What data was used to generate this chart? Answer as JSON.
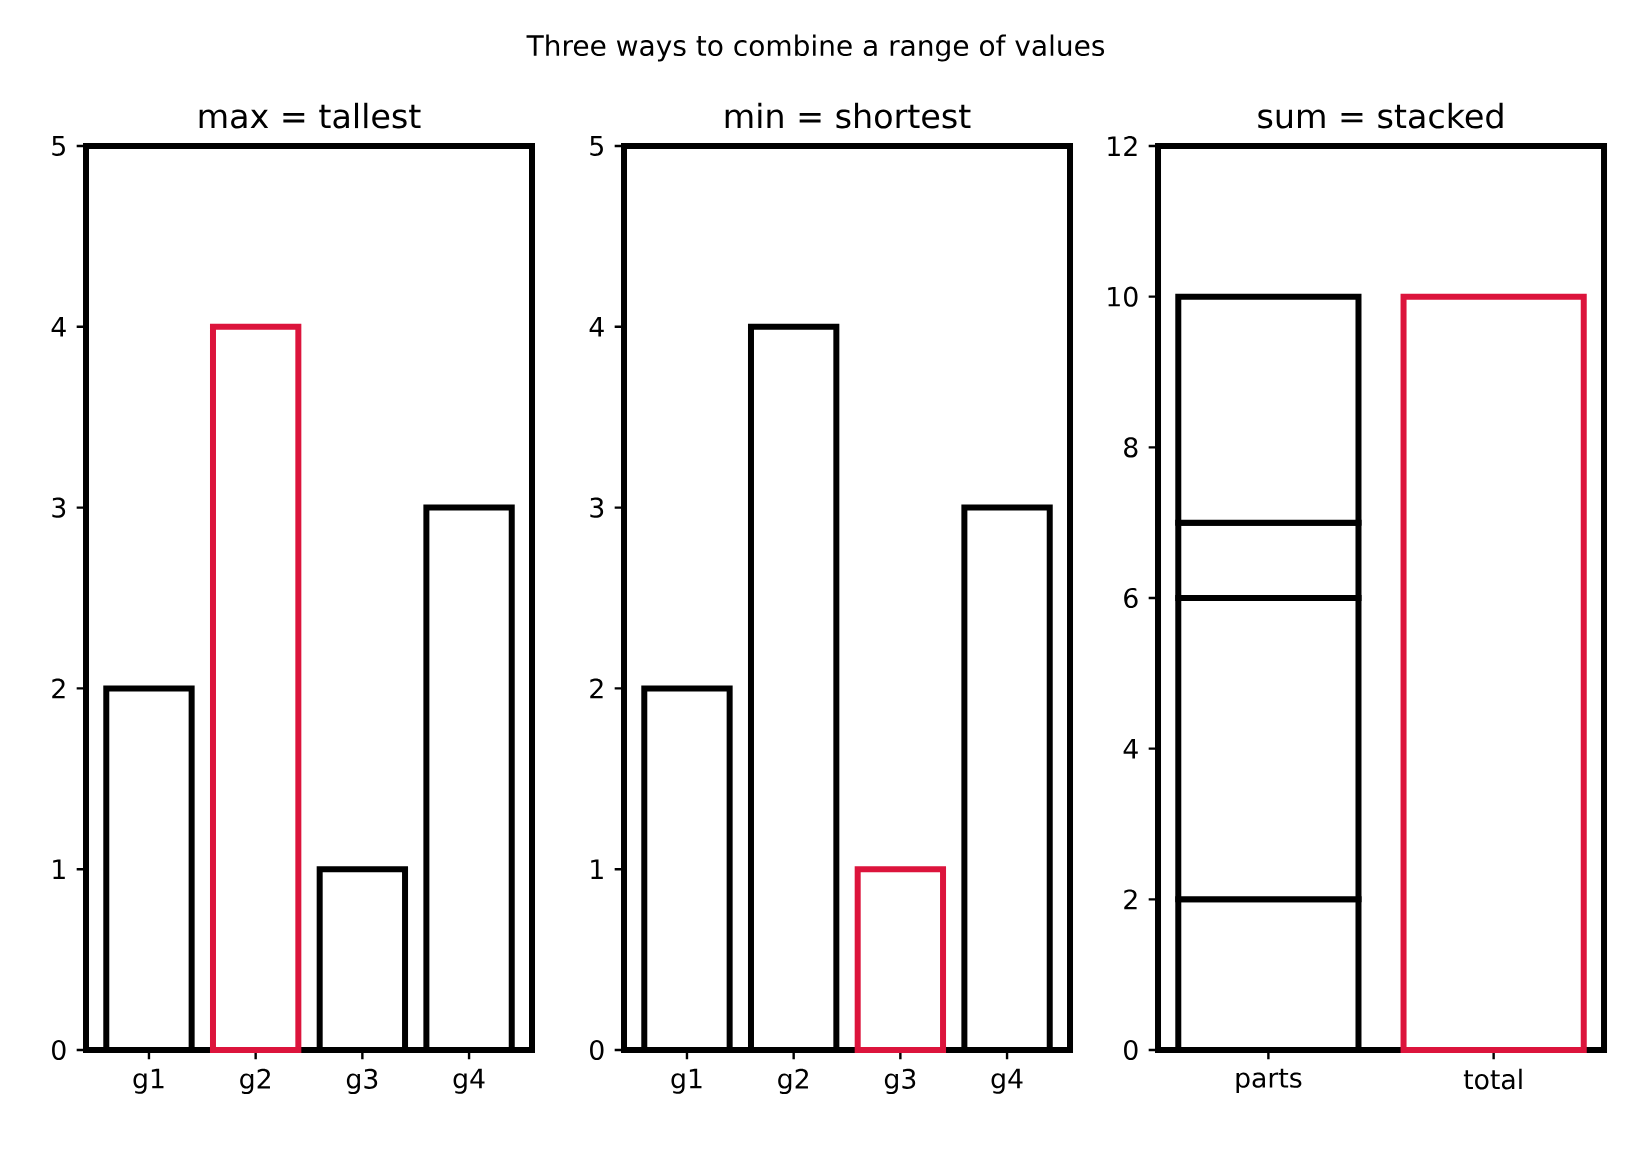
{
  "chart_data": [
    {
      "type": "bar",
      "title": "max = tallest",
      "annotations": [
        "Three ways to combine a range of values"
      ],
      "categories": [
        "g1",
        "g2",
        "g3",
        "g4"
      ],
      "values": [
        2,
        4,
        1,
        3
      ],
      "colors": [
        "#000000",
        "#dc143c",
        "#000000",
        "#000000"
      ],
      "ylim": [
        0,
        5
      ],
      "yticks": [
        0,
        1,
        2,
        3,
        4,
        5
      ]
    },
    {
      "type": "bar",
      "title": "min = shortest",
      "categories": [
        "g1",
        "g2",
        "g3",
        "g4"
      ],
      "values": [
        2,
        4,
        1,
        3
      ],
      "colors": [
        "#000000",
        "#000000",
        "#dc143c",
        "#000000"
      ],
      "ylim": [
        0,
        5
      ],
      "yticks": [
        0,
        1,
        2,
        3,
        4,
        5
      ]
    },
    {
      "type": "bar",
      "title": "sum = stacked",
      "categories": [
        "parts",
        "total"
      ],
      "stacked": true,
      "series": [
        {
          "color": "#000000",
          "values": [
            2,
            null
          ]
        },
        {
          "color": "#000000",
          "values": [
            4,
            null
          ]
        },
        {
          "color": "#000000",
          "values": [
            1,
            null
          ]
        },
        {
          "color": "#000000",
          "values": [
            3,
            null
          ]
        },
        {
          "color": "#dc143c",
          "values": [
            null,
            10
          ]
        }
      ],
      "ylim": [
        0,
        12
      ],
      "yticks": [
        0,
        2,
        4,
        6,
        8,
        10,
        12
      ]
    }
  ]
}
